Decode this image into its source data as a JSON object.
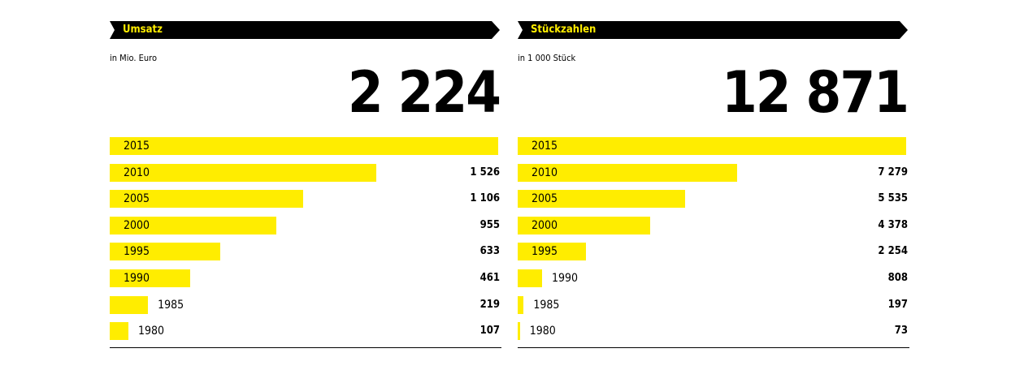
{
  "colors": {
    "bar": "#ffed00",
    "header_bg": "#000000",
    "header_text": "#ffed00"
  },
  "chart_data": [
    {
      "type": "bar",
      "orientation": "horizontal",
      "title": "Umsatz",
      "unit": "in Mio. Euro",
      "total_label": "2 224",
      "max": 2224,
      "rows": [
        {
          "year": "2015",
          "value": 2224,
          "label": ""
        },
        {
          "year": "2010",
          "value": 1526,
          "label": "1 526"
        },
        {
          "year": "2005",
          "value": 1106,
          "label": "1 106"
        },
        {
          "year": "2000",
          "value": 955,
          "label": "955"
        },
        {
          "year": "1995",
          "value": 633,
          "label": "633"
        },
        {
          "year": "1990",
          "value": 461,
          "label": "461"
        },
        {
          "year": "1985",
          "value": 219,
          "label": "219"
        },
        {
          "year": "1980",
          "value": 107,
          "label": "107"
        }
      ]
    },
    {
      "type": "bar",
      "orientation": "horizontal",
      "title": "Stückzahlen",
      "unit": "in 1 000 Stück",
      "total_label": "12 871",
      "max": 12871,
      "rows": [
        {
          "year": "2015",
          "value": 12871,
          "label": ""
        },
        {
          "year": "2010",
          "value": 7279,
          "label": "7 279"
        },
        {
          "year": "2005",
          "value": 5535,
          "label": "5 535"
        },
        {
          "year": "2000",
          "value": 4378,
          "label": "4 378"
        },
        {
          "year": "1995",
          "value": 2254,
          "label": "2 254"
        },
        {
          "year": "1990",
          "value": 808,
          "label": "808"
        },
        {
          "year": "1985",
          "value": 197,
          "label": "197"
        },
        {
          "year": "1980",
          "value": 73,
          "label": "73"
        }
      ]
    }
  ]
}
